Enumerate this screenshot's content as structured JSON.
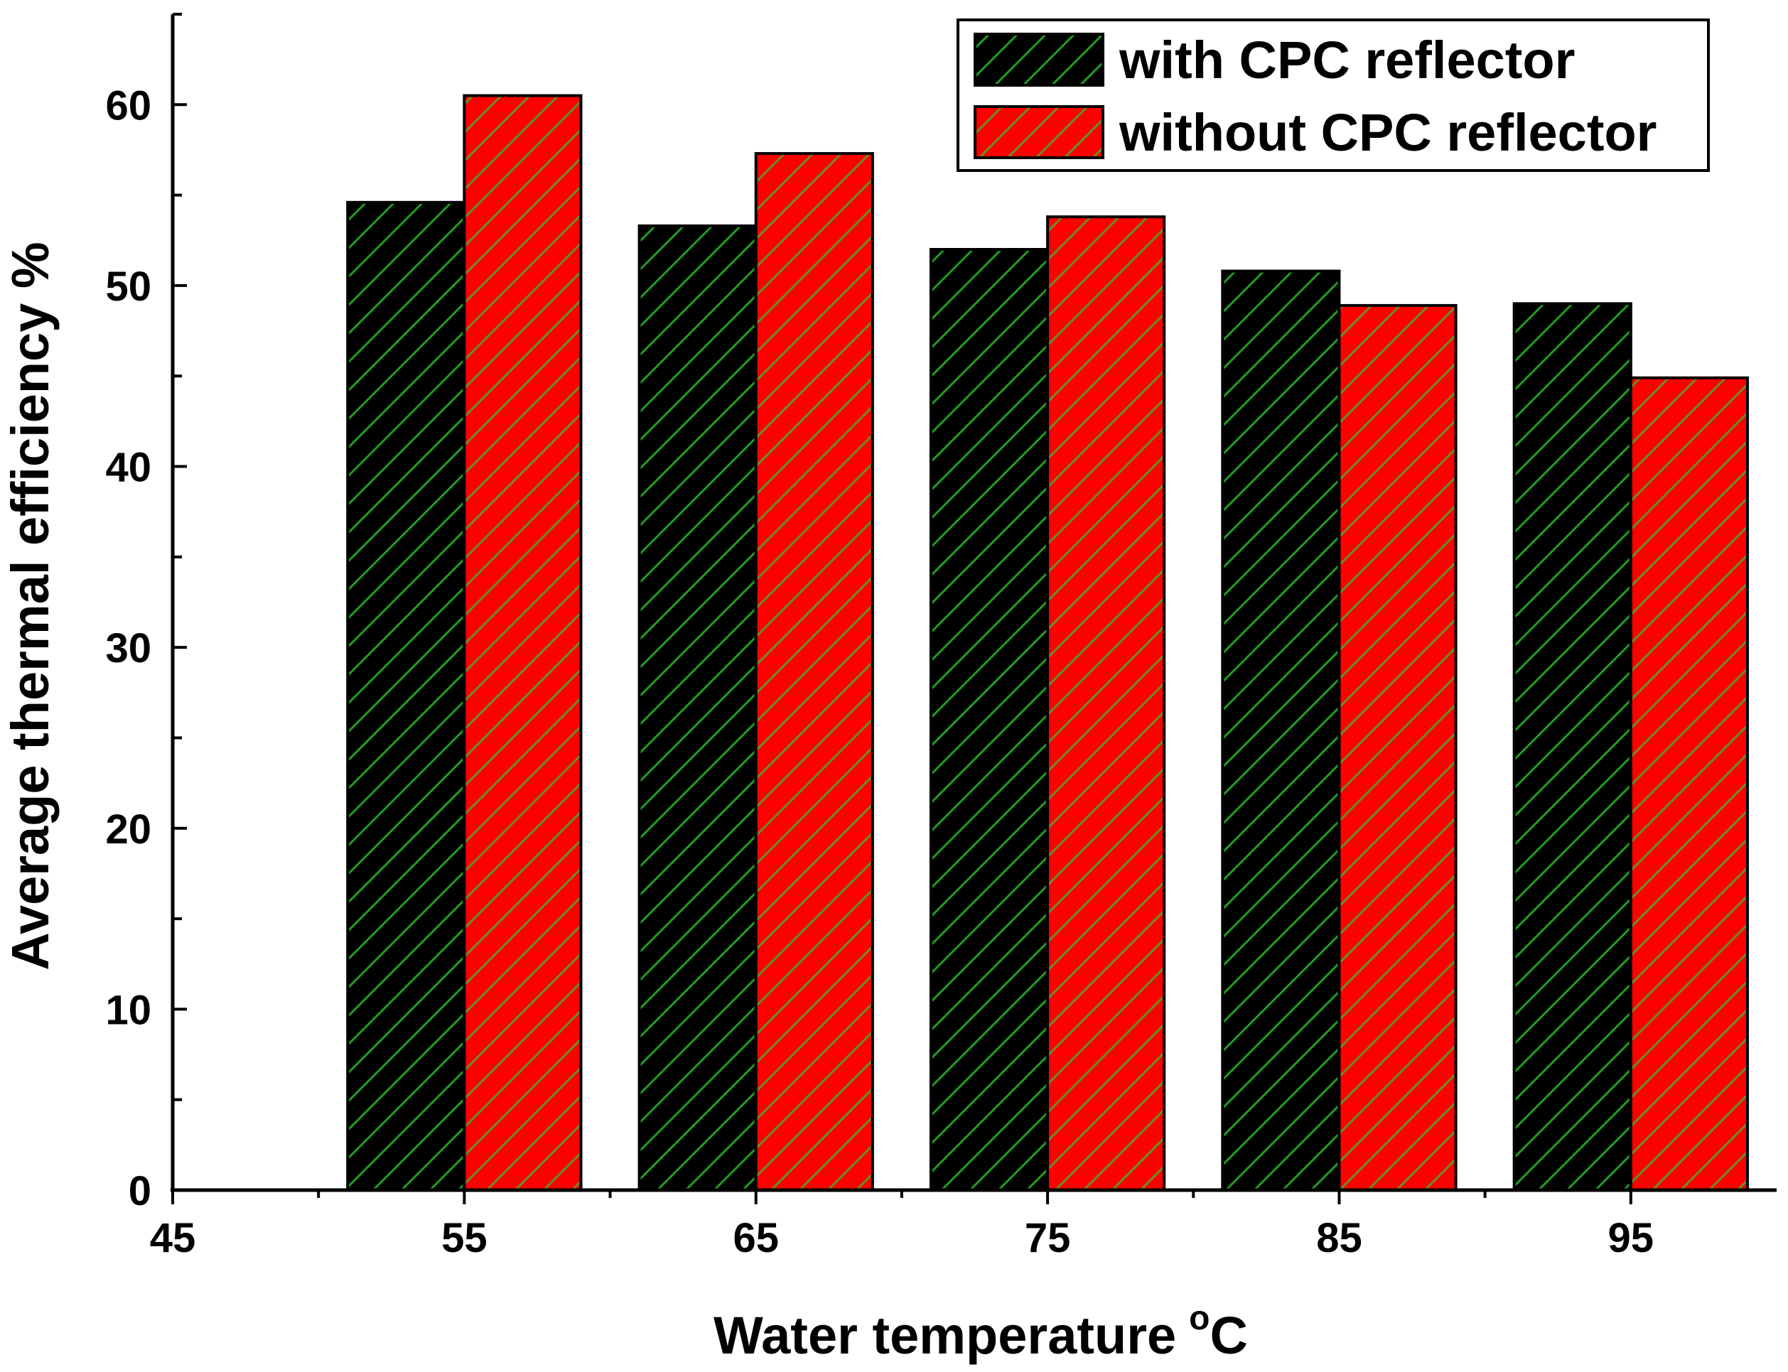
{
  "chart_data": {
    "type": "bar",
    "title": "",
    "xlabel": "Water temperature",
    "xlabel_unit_sup": "o",
    "xlabel_unit": "C",
    "ylabel": "Average thermal efficiency %",
    "xlim": [
      45,
      100
    ],
    "ylim": [
      0,
      65
    ],
    "x_ticks": [
      "45",
      "55",
      "65",
      "75",
      "85",
      "95"
    ],
    "y_ticks": [
      "0",
      "10",
      "20",
      "30",
      "40",
      "50",
      "60"
    ],
    "categories": [
      "55",
      "65",
      "75",
      "85",
      "95"
    ],
    "series": [
      {
        "name": "with CPC reflector",
        "color": "#000000",
        "hatch_color": "#1e9e1e",
        "values": [
          54.6,
          53.3,
          52.0,
          50.8,
          49.0
        ]
      },
      {
        "name": "without CPC reflector",
        "color": "#ff0000",
        "hatch_color": "#6b8e23",
        "values": [
          60.5,
          57.3,
          53.8,
          48.9,
          44.9
        ]
      }
    ],
    "legend_position": "top-right"
  }
}
